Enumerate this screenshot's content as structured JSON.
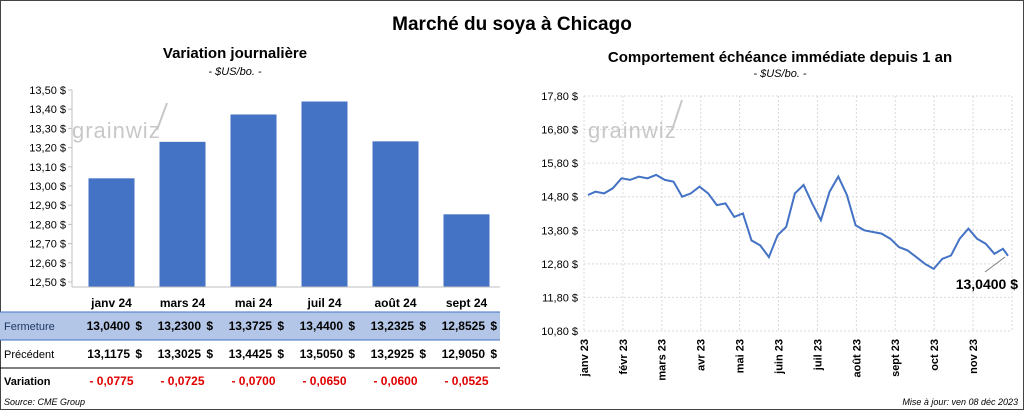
{
  "title": "Marché du soya à Chicago",
  "left": {
    "title": "Variation journalière",
    "unit": "- $US/bo. -",
    "watermark": "grainwiz",
    "y_ticks": [
      "13,50 $",
      "13,40 $",
      "13,30 $",
      "13,20 $",
      "13,10 $",
      "13,00 $",
      "12,90 $",
      "12,80 $",
      "12,70 $",
      "12,60 $",
      "12,50 $"
    ]
  },
  "right": {
    "title": "Comportement  échéance immédiate depuis 1 an",
    "unit": "- $US/bo. -",
    "watermark": "grainwiz",
    "y_ticks": [
      "17,80 $",
      "16,80 $",
      "15,80 $",
      "14,80 $",
      "13,80 $",
      "12,80 $",
      "11,80 $",
      "10,80 $"
    ],
    "x_ticks": [
      "janv 23",
      "févr 23",
      "mars 23",
      "avr 23",
      "mai 23",
      "juin 23",
      "juil 23",
      "août 23",
      "sept 23",
      "oct 23",
      "nov 23"
    ],
    "last_value_label": "13,0400 $"
  },
  "table": {
    "rows": [
      {
        "label": "Fermeture",
        "values": [
          "13,0400",
          "13,2300",
          "13,3725",
          "13,4400",
          "13,2325",
          "12,8525"
        ],
        "currency": "$"
      },
      {
        "label": "Précédent",
        "values": [
          "13,1175",
          "13,3025",
          "13,4425",
          "13,5050",
          "13,2925",
          "12,9050"
        ],
        "currency": "$"
      },
      {
        "label": "Variation",
        "values": [
          "- 0,0775",
          "- 0,0725",
          "- 0,0700",
          "- 0,0650",
          "- 0,0600",
          "- 0,0525"
        ],
        "currency": ""
      }
    ]
  },
  "footer": {
    "source": "Source: CME Group",
    "updated": "Mise à jour: ven 08 déc 2023"
  },
  "colors": {
    "bar": "#4472c4",
    "line": "#4472c4",
    "table_highlight": "#b4c6e7",
    "negative": "#e00000"
  },
  "chart_data": [
    {
      "type": "bar",
      "title": "Variation journalière",
      "categories": [
        "janv 24",
        "mars 24",
        "mai 24",
        "juil 24",
        "août 24",
        "sept 24"
      ],
      "values": [
        13.04,
        13.23,
        13.3725,
        13.44,
        13.2325,
        12.8525
      ],
      "ylim": [
        12.5,
        13.5
      ],
      "grid": false
    },
    {
      "type": "line",
      "title": "Comportement  échéance immédiate depuis 1 an",
      "ylim": [
        10.8,
        17.8
      ],
      "grid": true,
      "x_ticks": [
        "janv 23",
        "févr 23",
        "mars 23",
        "avr 23",
        "mai 23",
        "juin 23",
        "juil 23",
        "août 23",
        "sept 23",
        "oct 23",
        "nov 23"
      ],
      "x": [
        "2023-01-03",
        "2023-01-09",
        "2023-01-16",
        "2023-01-23",
        "2023-01-30",
        "2023-02-06",
        "2023-02-13",
        "2023-02-20",
        "2023-02-27",
        "2023-03-06",
        "2023-03-13",
        "2023-03-20",
        "2023-03-27",
        "2023-04-03",
        "2023-04-10",
        "2023-04-17",
        "2023-04-24",
        "2023-05-01",
        "2023-05-08",
        "2023-05-15",
        "2023-05-22",
        "2023-05-29",
        "2023-06-05",
        "2023-06-12",
        "2023-06-19",
        "2023-06-26",
        "2023-07-03",
        "2023-07-10",
        "2023-07-17",
        "2023-07-24",
        "2023-07-31",
        "2023-08-07",
        "2023-08-14",
        "2023-08-21",
        "2023-08-28",
        "2023-09-04",
        "2023-09-11",
        "2023-09-18",
        "2023-09-25",
        "2023-10-02",
        "2023-10-09",
        "2023-10-16",
        "2023-10-23",
        "2023-10-30",
        "2023-11-06",
        "2023-11-13",
        "2023-11-20",
        "2023-11-27",
        "2023-12-04",
        "2023-12-08"
      ],
      "values": [
        14.85,
        14.95,
        14.9,
        15.05,
        15.35,
        15.3,
        15.4,
        15.35,
        15.45,
        15.3,
        15.25,
        14.8,
        14.9,
        15.1,
        14.9,
        14.55,
        14.6,
        14.2,
        14.3,
        13.5,
        13.35,
        13.0,
        13.65,
        13.9,
        14.9,
        15.15,
        14.6,
        14.1,
        14.95,
        15.4,
        14.85,
        13.95,
        13.8,
        13.75,
        13.7,
        13.55,
        13.3,
        13.2,
        13.0,
        12.8,
        12.65,
        12.95,
        13.05,
        13.55,
        13.85,
        13.55,
        13.4,
        13.1,
        13.25,
        13.04
      ]
    }
  ]
}
